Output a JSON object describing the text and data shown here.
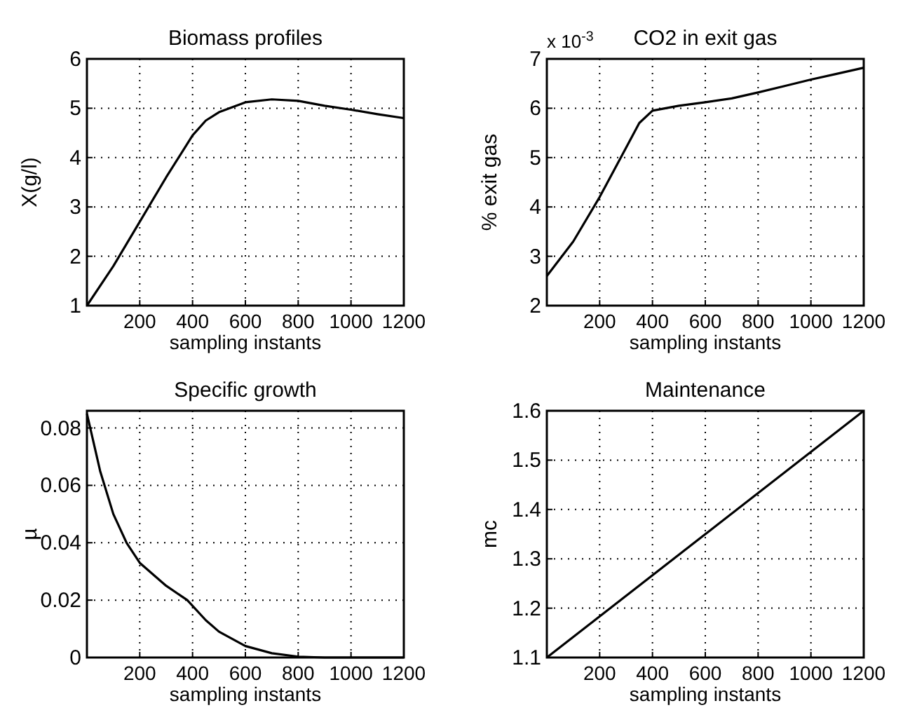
{
  "chart_data": [
    {
      "type": "line",
      "title": "Biomass profiles",
      "xlabel": "sampling instants",
      "ylabel": "X(g/l)",
      "grid": true,
      "xlim": [
        0,
        1200
      ],
      "xticks": [
        200,
        400,
        600,
        800,
        1000,
        1200
      ],
      "ylim": [
        1,
        6
      ],
      "yticks": [
        1,
        2,
        3,
        4,
        5,
        6
      ],
      "x": [
        0,
        100,
        200,
        300,
        400,
        450,
        500,
        600,
        700,
        800,
        900,
        1000,
        1100,
        1200
      ],
      "series": [
        {
          "color": "#000000",
          "values": [
            1,
            1.8,
            2.7,
            3.6,
            4.45,
            4.75,
            4.92,
            5.12,
            5.18,
            5.15,
            5.05,
            4.97,
            4.88,
            4.8
          ]
        }
      ]
    },
    {
      "type": "line",
      "title": "CO2 in exit gas",
      "xlabel": "sampling instants",
      "ylabel": "% exit gas",
      "annotations": [
        "x 10$^{-3}$"
      ],
      "grid": true,
      "xlim": [
        0,
        1200
      ],
      "xticks": [
        200,
        400,
        600,
        800,
        1000,
        1200
      ],
      "ylim": [
        2,
        7
      ],
      "yticks": [
        2,
        3,
        4,
        5,
        6,
        7
      ],
      "x": [
        0,
        100,
        200,
        300,
        350,
        400,
        500,
        600,
        700,
        800,
        900,
        1000,
        1100,
        1200
      ],
      "series": [
        {
          "color": "#000000",
          "values": [
            2.6,
            3.3,
            4.2,
            5.2,
            5.7,
            5.95,
            6.05,
            6.12,
            6.2,
            6.32,
            6.45,
            6.58,
            6.7,
            6.82
          ]
        }
      ]
    },
    {
      "type": "line",
      "title": "Specific growth",
      "xlabel": "sampling instants",
      "ylabel": "µ",
      "grid": true,
      "xlim": [
        0,
        1200
      ],
      "xticks": [
        200,
        400,
        600,
        800,
        1000,
        1200
      ],
      "ylim": [
        0,
        0.086
      ],
      "yticks": [
        0,
        0.02,
        0.04,
        0.06,
        0.08
      ],
      "x": [
        0,
        50,
        100,
        150,
        200,
        300,
        380,
        450,
        500,
        600,
        700,
        800,
        900,
        1200
      ],
      "series": [
        {
          "color": "#000000",
          "values": [
            0.085,
            0.065,
            0.05,
            0.04,
            0.033,
            0.025,
            0.02,
            0.013,
            0.009,
            0.004,
            0.0015,
            0.0003,
            0,
            0
          ]
        }
      ]
    },
    {
      "type": "line",
      "title": "Maintenance",
      "xlabel": "sampling instants",
      "ylabel": "mc",
      "grid": true,
      "xlim": [
        0,
        1200
      ],
      "xticks": [
        200,
        400,
        600,
        800,
        1000,
        1200
      ],
      "ylim": [
        1.1,
        1.6
      ],
      "yticks": [
        1.1,
        1.2,
        1.3,
        1.4,
        1.5,
        1.6
      ],
      "x": [
        0,
        1200
      ],
      "series": [
        {
          "color": "#000000",
          "values": [
            1.1,
            1.6
          ]
        }
      ]
    }
  ]
}
